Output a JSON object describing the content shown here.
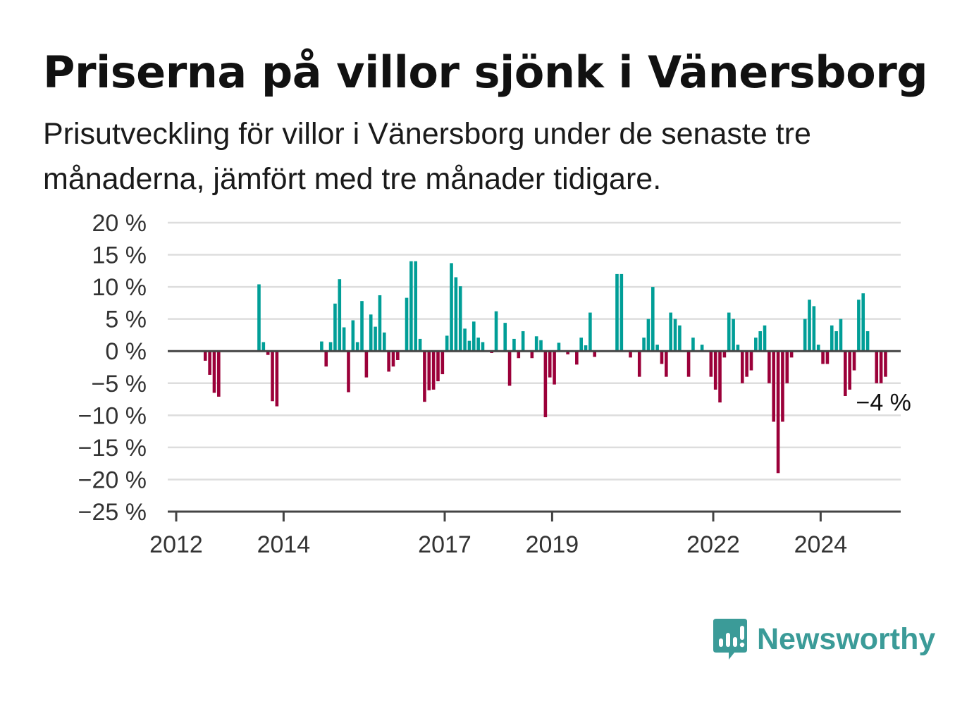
{
  "title": "Priserna på villor sjönk i Vänersborg",
  "subtitle": "Prisutveckling för villor i Vänersborg under de senaste tre månaderna, jämfört med tre månader tidigare.",
  "brand": {
    "name": "Newsworthy",
    "color": "#3b9b98",
    "icon": "newsworthy-logo-icon"
  },
  "colors": {
    "positive": "#009e97",
    "negative": "#9b0039",
    "grid": "#dddddd",
    "axis": "#444444"
  },
  "chart_data": {
    "type": "bar",
    "ylim": [
      -25,
      20
    ],
    "yticks": [
      20,
      15,
      10,
      5,
      0,
      -5,
      -10,
      -15,
      -20,
      -25
    ],
    "ytick_labels": [
      "20 %",
      "15 %",
      "10 %",
      "5 %",
      "0 %",
      "−5 %",
      "−10 %",
      "−15 %",
      "−20 %",
      "−25 %"
    ],
    "xticks": [
      2012,
      2014,
      2017,
      2019,
      2022,
      2024
    ],
    "xtick_labels": [
      "2012",
      "2014",
      "2017",
      "2019",
      "2022",
      "2024"
    ],
    "x_start": 2012,
    "months_per_bar": 1,
    "grid": true,
    "last_value_label": "−4 %",
    "values": [
      null,
      null,
      null,
      null,
      null,
      null,
      -1.5,
      -3.7,
      -6.5,
      -7.1,
      null,
      null,
      null,
      null,
      null,
      null,
      null,
      null,
      10.4,
      1.4,
      -0.6,
      -7.8,
      -8.6,
      null,
      null,
      null,
      null,
      null,
      null,
      null,
      null,
      null,
      1.5,
      -2.4,
      1.4,
      7.4,
      11.2,
      3.7,
      -6.4,
      4.8,
      1.4,
      7.8,
      -4.1,
      5.7,
      3.8,
      8.7,
      2.9,
      -3.2,
      -2.4,
      -1.4,
      null,
      8.3,
      14.0,
      14.0,
      1.9,
      -7.9,
      -6.1,
      -6.0,
      -4.7,
      -3.6,
      2.4,
      13.7,
      11.5,
      10.1,
      3.5,
      1.6,
      4.6,
      2.1,
      1.4,
      null,
      -0.3,
      6.2,
      null,
      4.4,
      -5.4,
      1.9,
      -1.1,
      3.1,
      null,
      -1.1,
      2.3,
      1.7,
      -10.3,
      -4.1,
      -5.2,
      1.3,
      null,
      -0.5,
      null,
      -2.1,
      2.1,
      0.9,
      6.0,
      -0.9,
      null,
      null,
      null,
      null,
      12.0,
      12.0,
      null,
      -1.0,
      null,
      -4.0,
      2.1,
      5.0,
      10.0,
      1.0,
      -2.0,
      -4.0,
      6.0,
      5.0,
      4.0,
      null,
      -4.0,
      2.1,
      null,
      1.0,
      null,
      -4.0,
      -6.0,
      -8.0,
      -1.0,
      6.0,
      5.0,
      1.0,
      -5.0,
      -4.0,
      -3.0,
      2.1,
      3.1,
      4.0,
      -5.0,
      -11.0,
      -19.0,
      -11.0,
      -5.0,
      -1.0,
      null,
      null,
      5.0,
      8.0,
      7.0,
      1.0,
      -2.0,
      -2.0,
      4.0,
      3.1,
      5.0,
      -7.0,
      -6.0,
      -3.0,
      8.0,
      9.0,
      3.1,
      null,
      -5.0,
      -5.0,
      -4.0
    ]
  }
}
